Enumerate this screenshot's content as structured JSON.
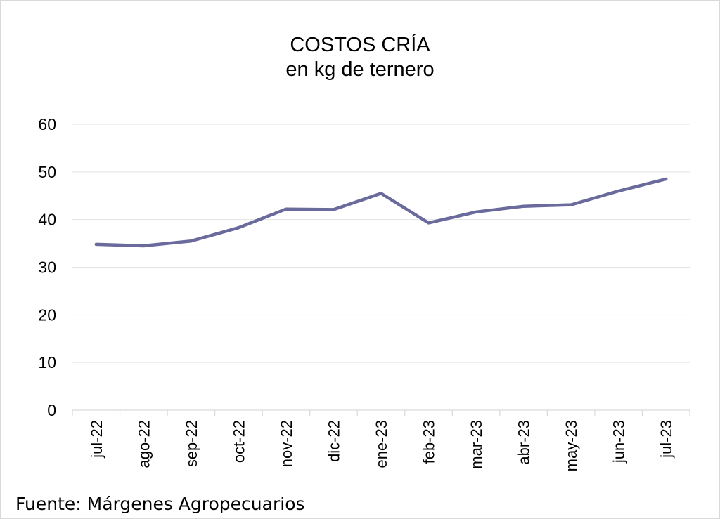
{
  "chart_data": {
    "type": "line",
    "title": "COSTOS CRÍA",
    "subtitle": "en kg de ternero",
    "categories": [
      "jul-22",
      "ago-22",
      "sep-22",
      "oct-22",
      "nov-22",
      "dic-22",
      "ene-23",
      "feb-23",
      "mar-23",
      "abr-23",
      "may-23",
      "jun-23",
      "jul-23"
    ],
    "series": [
      {
        "name": "Costos cría",
        "color": "#6a6a9c",
        "values": [
          34.8,
          34.5,
          35.5,
          38.3,
          42.2,
          42.1,
          45.5,
          39.3,
          41.6,
          42.8,
          43.1,
          46.0,
          48.5
        ]
      }
    ],
    "yticks": [
      0,
      10,
      20,
      30,
      40,
      50,
      60
    ],
    "ylim": [
      0,
      60
    ],
    "xlabel": "",
    "ylabel": "",
    "grid": true,
    "legend": "none"
  },
  "source": "Fuente: Márgenes Agropecuarios"
}
